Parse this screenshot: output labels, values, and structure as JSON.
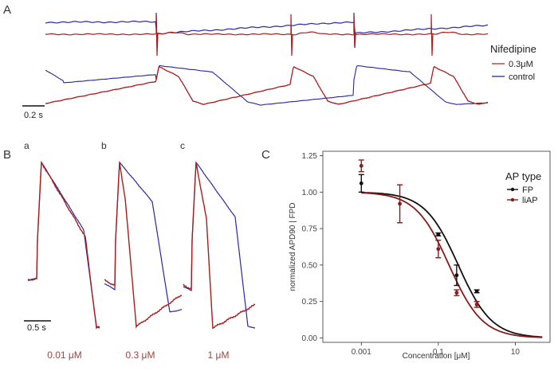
{
  "panels": {
    "a_label": "A",
    "b_label": "B",
    "c_label": "C",
    "b_sub": [
      "a",
      "b",
      "c"
    ]
  },
  "panel_a": {
    "legend_title": "Nifedipine",
    "legend_items": [
      {
        "label": "0.3μM",
        "color": "#a83232"
      },
      {
        "label": "control",
        "color": "#2a2aa8"
      }
    ],
    "scale_label": "0.2 s"
  },
  "panel_b": {
    "scale_label": "0.5 s",
    "concentrations": [
      "0.01 μM",
      "0.3 μM",
      "1 μM"
    ],
    "conc_color": "#a0453f"
  },
  "colors": {
    "treated": "#a81c1c",
    "control": "#2727a6",
    "fp": "#111111",
    "liap": "#8b1a1a"
  },
  "chart_data": {
    "type": "scatter",
    "title": "",
    "xlabel": "Concentration [μM]",
    "ylabel": "normalized APD90 | FPD",
    "x_scale": "log10",
    "xlim": [
      0.0001,
      80
    ],
    "ylim": [
      -0.03,
      1.28
    ],
    "x_ticks": [
      {
        "value": 0.001,
        "label": "0.001"
      },
      {
        "value": 0.1,
        "label": "0.1"
      },
      {
        "value": 10,
        "label": "10"
      }
    ],
    "y_ticks": [
      {
        "value": 0,
        "label": "0.00"
      },
      {
        "value": 0.25,
        "label": "0.25"
      },
      {
        "value": 0.5,
        "label": "0.50"
      },
      {
        "value": 0.75,
        "label": "0.75"
      },
      {
        "value": 1.0,
        "label": "1.00"
      },
      {
        "value": 1.25,
        "label": "1.25"
      }
    ],
    "legend_title": "AP type",
    "series": [
      {
        "name": "FP",
        "color": "#111111",
        "points": [
          {
            "x": 0.001,
            "y": 1.06,
            "err": 0.06
          },
          {
            "x": 0.1,
            "y": 0.71,
            "err": 0.01
          },
          {
            "x": 0.3,
            "y": 0.43,
            "err": 0.07
          },
          {
            "x": 1.0,
            "y": 0.32,
            "err": 0.01
          }
        ],
        "fit": {
          "ic50": 0.33,
          "hill": 1.0
        }
      },
      {
        "name": "liAP",
        "color": "#8b1a1a",
        "points": [
          {
            "x": 0.001,
            "y": 1.18,
            "err": 0.04
          },
          {
            "x": 0.01,
            "y": 0.92,
            "err": 0.13
          },
          {
            "x": 0.1,
            "y": 0.61,
            "err": 0.06
          },
          {
            "x": 0.3,
            "y": 0.31,
            "err": 0.02
          },
          {
            "x": 1.0,
            "y": 0.23,
            "err": 0.02
          }
        ],
        "fit": {
          "ic50": 0.19,
          "hill": 1.0
        }
      }
    ]
  }
}
